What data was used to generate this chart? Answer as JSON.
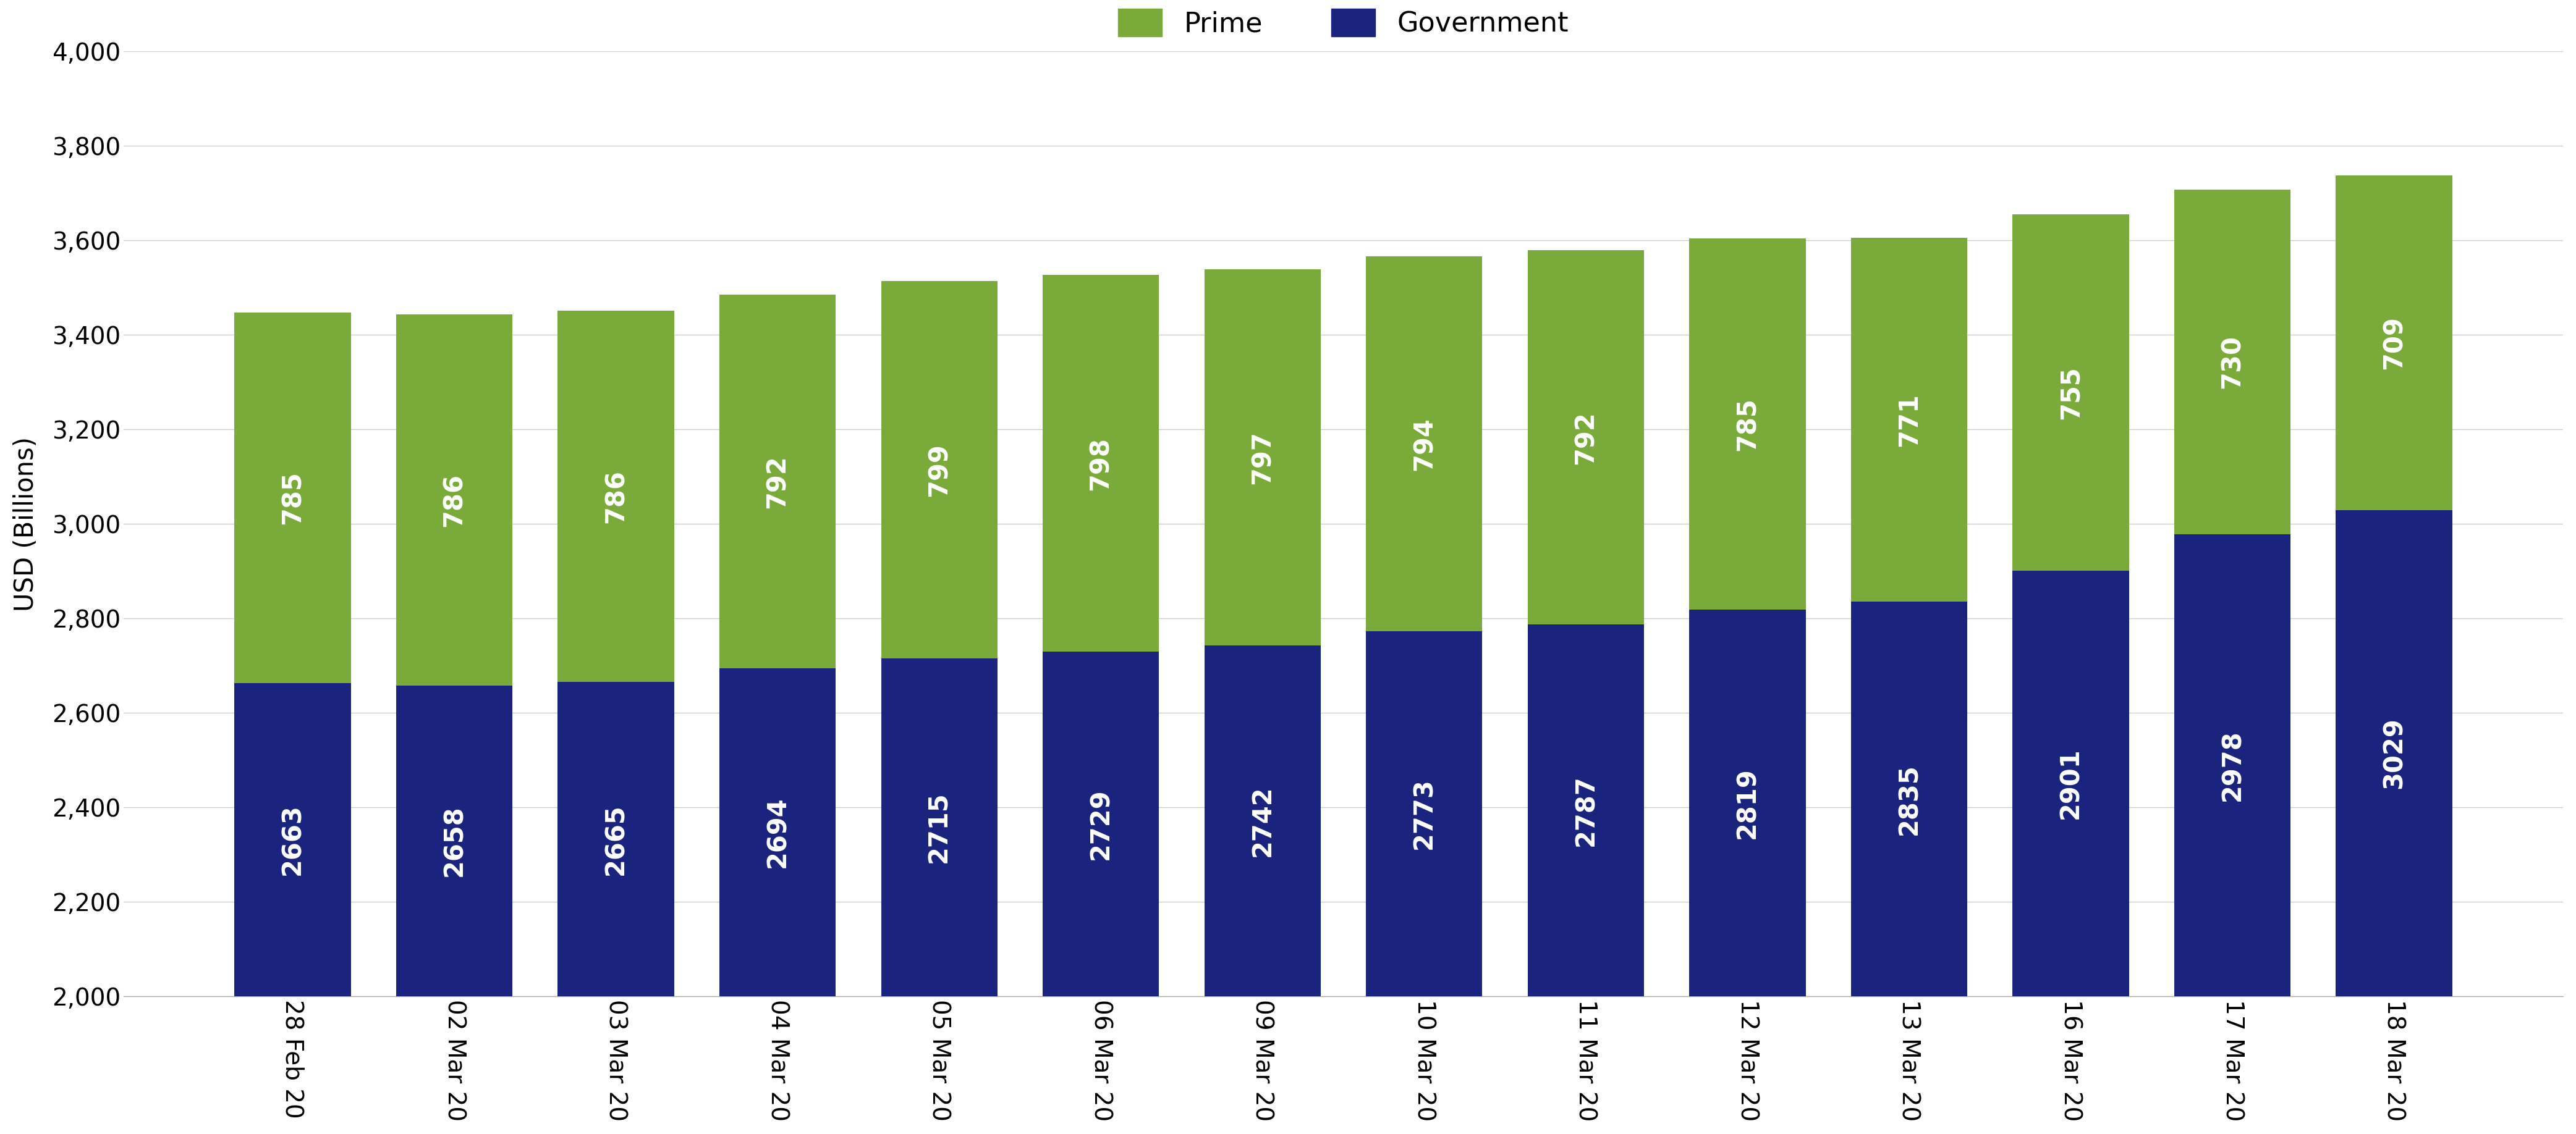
{
  "categories": [
    "28 Feb 20",
    "02 Mar 20",
    "03 Mar 20",
    "04 Mar 20",
    "05 Mar 20",
    "06 Mar 20",
    "09 Mar 20",
    "10 Mar 20",
    "11 Mar 20",
    "12 Mar 20",
    "13 Mar 20",
    "16 Mar 20",
    "17 Mar 20",
    "18 Mar 20"
  ],
  "government": [
    2663,
    2658,
    2665,
    2694,
    2715,
    2729,
    2742,
    2773,
    2787,
    2819,
    2835,
    2901,
    2978,
    3029
  ],
  "prime": [
    785,
    786,
    786,
    792,
    799,
    798,
    797,
    794,
    792,
    785,
    771,
    755,
    730,
    709
  ],
  "gov_color": "#1a237e",
  "prime_color": "#7aab3a",
  "background_color": "#ffffff",
  "ylabel": "USD (Billions)",
  "ylim_min": 2000,
  "ylim_max": 4000,
  "yticks": [
    2000,
    2200,
    2400,
    2600,
    2800,
    3000,
    3200,
    3400,
    3600,
    3800,
    4000
  ],
  "legend_prime": "Prime",
  "legend_gov": "Government",
  "bar_width": 0.72,
  "label_fontsize": 30,
  "tick_fontsize": 28,
  "legend_fontsize": 32,
  "ylabel_fontsize": 30,
  "grid_color": "#cccccc"
}
